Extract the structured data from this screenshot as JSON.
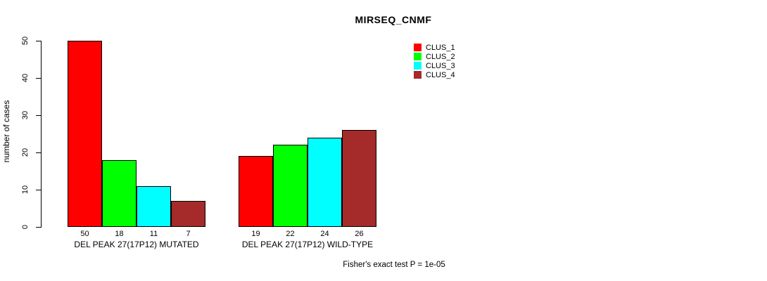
{
  "title": "MIRSEQ_CNMF",
  "ylabel": "number of cases",
  "annotation": "Fisher's exact test P = 1e-05",
  "legend": [
    {
      "label": "CLUS_1",
      "color": "#ff0000"
    },
    {
      "label": "CLUS_2",
      "color": "#00ff00"
    },
    {
      "label": "CLUS_3",
      "color": "#00ffff"
    },
    {
      "label": "CLUS_4",
      "color": "#a52a2a"
    }
  ],
  "chart_data": {
    "type": "bar",
    "title": "MIRSEQ_CNMF",
    "ylabel": "number of cases",
    "xlabel": "",
    "ylim": [
      0,
      50
    ],
    "yticks": [
      0,
      10,
      20,
      30,
      40,
      50
    ],
    "grid": false,
    "legend_position": "top-right",
    "series": [
      "CLUS_1",
      "CLUS_2",
      "CLUS_3",
      "CLUS_4"
    ],
    "colors": [
      "#ff0000",
      "#00ff00",
      "#00ffff",
      "#a52a2a"
    ],
    "groups": [
      {
        "label": "DEL PEAK 27(17P12) MUTATED",
        "values": [
          50,
          18,
          11,
          7
        ]
      },
      {
        "label": "DEL PEAK 27(17P12) WILD-TYPE",
        "values": [
          19,
          22,
          24,
          26
        ]
      }
    ],
    "annotation": "Fisher's exact test P = 1e-05"
  }
}
